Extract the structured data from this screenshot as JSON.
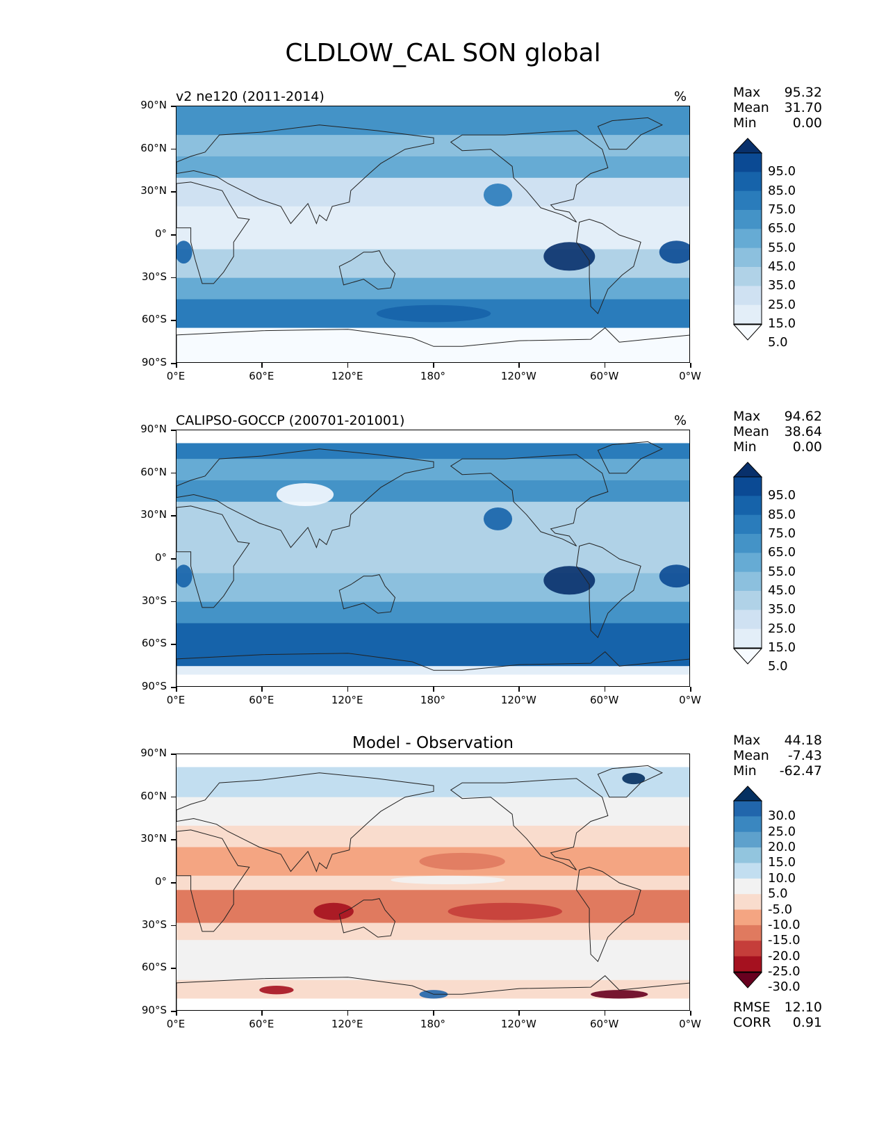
{
  "title": "CLDLOW_CAL SON global",
  "xticks": [
    "0°E",
    "60°E",
    "120°E",
    "180°",
    "120°W",
    "60°W",
    "0°W"
  ],
  "yticks": [
    "90°N",
    "60°N",
    "30°N",
    "0°",
    "30°S",
    "60°S",
    "90°S"
  ],
  "panels": [
    {
      "left_title": "v2 ne120 (2011-2014)",
      "center_title": "",
      "units": "%",
      "stats": [
        {
          "label": "Max",
          "value": "95.32"
        },
        {
          "label": "Mean",
          "value": "31.70"
        },
        {
          "label": "Min",
          "value": "0.00"
        }
      ],
      "colorbar_labels": [
        "95.0",
        "85.0",
        "75.0",
        "65.0",
        "55.0",
        "45.0",
        "35.0",
        "25.0",
        "15.0",
        "5.0"
      ],
      "colorbar_colors": [
        "#08306b",
        "#0b4a94",
        "#1663aa",
        "#2a7cbb",
        "#4493c7",
        "#66abd4",
        "#8cc0de",
        "#b0d2e7",
        "#cfe1f2",
        "#e3eef8",
        "#f7fbff"
      ],
      "footer": []
    },
    {
      "left_title": "CALIPSO-GOCCP (200701-201001)",
      "center_title": "",
      "units": "%",
      "stats": [
        {
          "label": "Max",
          "value": "94.62"
        },
        {
          "label": "Mean",
          "value": "38.64"
        },
        {
          "label": "Min",
          "value": "0.00"
        }
      ],
      "colorbar_labels": [
        "95.0",
        "85.0",
        "75.0",
        "65.0",
        "55.0",
        "45.0",
        "35.0",
        "25.0",
        "15.0",
        "5.0"
      ],
      "colorbar_colors": [
        "#08306b",
        "#0b4a94",
        "#1663aa",
        "#2a7cbb",
        "#4493c7",
        "#66abd4",
        "#8cc0de",
        "#b0d2e7",
        "#cfe1f2",
        "#e3eef8",
        "#f7fbff"
      ],
      "footer": []
    },
    {
      "left_title": "",
      "center_title": "Model - Observation",
      "units": "",
      "stats": [
        {
          "label": "Max",
          "value": "44.18"
        },
        {
          "label": "Mean",
          "value": "-7.43"
        },
        {
          "label": "Min",
          "value": "-62.47"
        }
      ],
      "colorbar_labels": [
        "30.0",
        "25.0",
        "20.0",
        "15.0",
        "10.0",
        "5.0",
        "-5.0",
        "-10.0",
        "-15.0",
        "-20.0",
        "-25.0",
        "-30.0"
      ],
      "colorbar_colors": [
        "#053061",
        "#2166ac",
        "#3a87c0",
        "#5ea1cc",
        "#92c5de",
        "#c2def0",
        "#f2f2f2",
        "#f9dccd",
        "#f4a582",
        "#e07a5f",
        "#c53e3a",
        "#a5111f",
        "#67001f"
      ],
      "footer": [
        {
          "label": "RMSE",
          "value": "12.10"
        },
        {
          "label": "CORR",
          "value": "0.91"
        }
      ]
    }
  ]
}
